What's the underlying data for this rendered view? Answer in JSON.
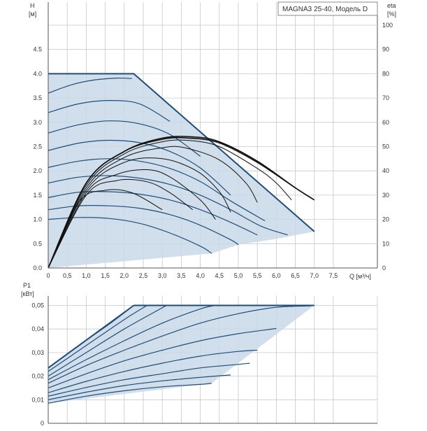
{
  "colors": {
    "envelope_fill": "#c9d8e8",
    "envelope_edge": "#1f4e79",
    "curve": "#1f4e79",
    "eta_curve": "#111111",
    "grid": "#c8c8c8",
    "axis": "#555555"
  },
  "chart_data": [
    {
      "id": "qh",
      "type": "line",
      "title": "MAGNA3 25-40, Модель D",
      "ylabel": "H",
      "ylabel_unit": "[м]",
      "y2label": "eta",
      "y2label_unit": "[%]",
      "xlabel": "Q [м³/ч]",
      "xlim": [
        0,
        8.5
      ],
      "ylim": [
        0,
        5.0
      ],
      "y2lim": [
        0,
        100
      ],
      "grid": true,
      "x_ticks": [
        "0",
        "0,5",
        "1,0",
        "1,5",
        "2,0",
        "2,5",
        "3,0",
        "3,5",
        "4,0",
        "4,5",
        "5,0",
        "5,5",
        "6,0",
        "6,5",
        "7,0",
        "7,5"
      ],
      "y_ticks": [
        "0.0",
        "0.5",
        "1.0",
        "1.5",
        "2.0",
        "2.5",
        "3.0",
        "3.5",
        "4.0",
        "4.5"
      ],
      "y2_ticks": [
        "0",
        "10",
        "20",
        "30",
        "40",
        "50",
        "60",
        "70",
        "80",
        "90",
        "100"
      ],
      "envelope": [
        [
          0,
          4.0
        ],
        [
          2.25,
          4.0
        ],
        [
          7.0,
          0.75
        ],
        [
          6.0,
          0.6
        ],
        [
          5.0,
          0.48
        ],
        [
          4.3,
          0.3
        ],
        [
          0,
          0
        ]
      ],
      "series": [
        {
          "values": [
            [
              0,
              3.6
            ],
            [
              0.6,
              3.77
            ],
            [
              1.2,
              3.87
            ],
            [
              1.8,
              3.91
            ],
            [
              2.2,
              3.9
            ]
          ]
        },
        {
          "values": [
            [
              0,
              3.2
            ],
            [
              0.8,
              3.38
            ],
            [
              1.6,
              3.45
            ],
            [
              2.4,
              3.38
            ],
            [
              3.2,
              3.02
            ]
          ]
        },
        {
          "values": [
            [
              0,
              2.78
            ],
            [
              0.8,
              2.95
            ],
            [
              1.6,
              3.03
            ],
            [
              2.4,
              2.97
            ],
            [
              3.2,
              2.75
            ],
            [
              4.0,
              2.3
            ]
          ]
        },
        {
          "values": [
            [
              0,
              2.42
            ],
            [
              0.8,
              2.57
            ],
            [
              1.6,
              2.63
            ],
            [
              2.4,
              2.58
            ],
            [
              3.2,
              2.4
            ],
            [
              4.0,
              2.06
            ],
            [
              4.8,
              1.5
            ]
          ]
        },
        {
          "values": [
            [
              0,
              2.07
            ],
            [
              0.8,
              2.2
            ],
            [
              1.6,
              2.25
            ],
            [
              2.4,
              2.2
            ],
            [
              3.2,
              2.05
            ],
            [
              4.0,
              1.78
            ],
            [
              4.8,
              1.38
            ],
            [
              5.7,
              0.97
            ]
          ]
        },
        {
          "values": [
            [
              0,
              1.75
            ],
            [
              0.8,
              1.87
            ],
            [
              1.6,
              1.9
            ],
            [
              2.4,
              1.85
            ],
            [
              3.2,
              1.72
            ],
            [
              4.0,
              1.5
            ],
            [
              4.8,
              1.2
            ],
            [
              5.6,
              0.86
            ],
            [
              6.3,
              0.68
            ]
          ]
        },
        {
          "values": [
            [
              0,
              1.45
            ],
            [
              0.8,
              1.56
            ],
            [
              1.6,
              1.57
            ],
            [
              2.4,
              1.52
            ],
            [
              3.2,
              1.4
            ],
            [
              4.0,
              1.2
            ],
            [
              4.8,
              0.94
            ],
            [
              5.5,
              0.68
            ]
          ]
        },
        {
          "values": [
            [
              0,
              1.2
            ],
            [
              0.8,
              1.28
            ],
            [
              1.6,
              1.28
            ],
            [
              2.4,
              1.23
            ],
            [
              3.2,
              1.1
            ],
            [
              4.0,
              0.88
            ],
            [
              4.8,
              0.58
            ],
            [
              5.0,
              0.48
            ]
          ]
        },
        {
          "values": [
            [
              0,
              1.0
            ],
            [
              0.8,
              1.04
            ],
            [
              1.6,
              1.02
            ],
            [
              2.4,
              0.92
            ],
            [
              3.2,
              0.72
            ],
            [
              4.0,
              0.45
            ],
            [
              4.3,
              0.3
            ]
          ]
        }
      ],
      "eta_series": [
        {
          "values": [
            [
              0,
              0
            ],
            [
              1,
              35
            ],
            [
              2,
              48
            ],
            [
              3,
              53.5
            ],
            [
              3.8,
              54
            ],
            [
              4.5,
              52
            ],
            [
              5.5,
              44
            ],
            [
              6.5,
              33
            ],
            [
              7.0,
              28
            ]
          ]
        },
        {
          "values": [
            [
              0,
              0
            ],
            [
              1,
              35
            ],
            [
              2,
              48
            ],
            [
              3,
              53
            ],
            [
              3.7,
              53.5
            ],
            [
              4.5,
              51.5
            ],
            [
              5.5,
              43.5
            ],
            [
              6.5,
              33
            ],
            [
              6.95,
              28.5
            ]
          ]
        },
        {
          "values": [
            [
              0,
              0
            ],
            [
              1,
              34
            ],
            [
              2,
              47
            ],
            [
              3,
              52
            ],
            [
              3.7,
              52.5
            ],
            [
              4.5,
              50
            ],
            [
              5.5,
              41
            ],
            [
              6.0,
              35
            ],
            [
              6.4,
              28
            ]
          ]
        },
        {
          "values": [
            [
              0,
              0
            ],
            [
              1,
              33
            ],
            [
              2,
              45.5
            ],
            [
              3,
              49.5
            ],
            [
              3.6,
              49.5
            ],
            [
              4.5,
              44.5
            ],
            [
              5.2,
              35
            ],
            [
              5.5,
              27
            ]
          ]
        },
        {
          "values": [
            [
              0,
              0
            ],
            [
              1,
              32
            ],
            [
              2,
              43.5
            ],
            [
              3,
              45
            ],
            [
              3.9,
              40
            ],
            [
              4.5,
              31.5
            ],
            [
              4.8,
              23
            ]
          ]
        },
        {
          "values": [
            [
              0,
              0
            ],
            [
              1,
              31
            ],
            [
              1.8,
              38.5
            ],
            [
              2.6,
              40.5
            ],
            [
              3.2,
              37.5
            ],
            [
              4.0,
              28
            ],
            [
              4.4,
              20
            ]
          ]
        },
        {
          "values": [
            [
              0,
              0
            ],
            [
              1,
              30
            ],
            [
              1.8,
              36
            ],
            [
              2.6,
              35.5
            ],
            [
              3.2,
              31
            ],
            [
              3.8,
              24
            ]
          ]
        },
        {
          "values": [
            [
              0,
              0
            ],
            [
              0.8,
              27
            ],
            [
              1.5,
              32
            ],
            [
              2.2,
              31
            ],
            [
              3.0,
              24
            ]
          ]
        }
      ]
    },
    {
      "id": "p1",
      "type": "line",
      "ylabel": "P1",
      "ylabel_unit": "[кВт]",
      "xlim": [
        0,
        8.5
      ],
      "ylim": [
        0,
        0.05
      ],
      "grid": true,
      "y_ticks": [
        "0",
        "0,01",
        "0,02",
        "0,03",
        "0,04",
        "0,05"
      ],
      "envelope": [
        [
          0,
          0.0235
        ],
        [
          2.25,
          0.05
        ],
        [
          7.0,
          0.05
        ],
        [
          4.3,
          0.017
        ],
        [
          0,
          0.0085
        ]
      ],
      "series": [
        {
          "values": [
            [
              0,
              0.0235
            ],
            [
              0.8,
              0.033
            ],
            [
              1.6,
              0.042
            ],
            [
              2.25,
              0.05
            ]
          ]
        },
        {
          "values": [
            [
              0,
              0.022
            ],
            [
              1.0,
              0.033
            ],
            [
              2.0,
              0.044
            ],
            [
              2.6,
              0.05
            ]
          ]
        },
        {
          "values": [
            [
              0,
              0.02
            ],
            [
              1.0,
              0.03
            ],
            [
              2.0,
              0.04
            ],
            [
              3.0,
              0.049
            ],
            [
              3.1,
              0.05
            ]
          ]
        },
        {
          "values": [
            [
              0,
              0.0185
            ],
            [
              1.0,
              0.027
            ],
            [
              2.0,
              0.035
            ],
            [
              3.0,
              0.0425
            ],
            [
              4.0,
              0.0485
            ],
            [
              4.4,
              0.05
            ]
          ]
        },
        {
          "values": [
            [
              0,
              0.017
            ],
            [
              1.0,
              0.0245
            ],
            [
              2.0,
              0.031
            ],
            [
              3.0,
              0.037
            ],
            [
              4.0,
              0.0425
            ],
            [
              5.0,
              0.0465
            ],
            [
              6.0,
              0.0492
            ],
            [
              6.9,
              0.0498
            ]
          ]
        },
        {
          "values": [
            [
              0,
              0.015
            ],
            [
              1.0,
              0.021
            ],
            [
              2.0,
              0.0265
            ],
            [
              3.0,
              0.031
            ],
            [
              4.0,
              0.035
            ],
            [
              5.0,
              0.038
            ],
            [
              6.0,
              0.0402
            ]
          ]
        },
        {
          "values": [
            [
              0,
              0.013
            ],
            [
              1.0,
              0.0178
            ],
            [
              2.0,
              0.022
            ],
            [
              3.0,
              0.0255
            ],
            [
              4.0,
              0.0285
            ],
            [
              5.0,
              0.0305
            ],
            [
              5.5,
              0.031
            ]
          ]
        },
        {
          "values": [
            [
              0,
              0.0115
            ],
            [
              1.0,
              0.0152
            ],
            [
              2.0,
              0.0185
            ],
            [
              3.0,
              0.021
            ],
            [
              4.0,
              0.0235
            ],
            [
              5.0,
              0.025
            ],
            [
              5.3,
              0.0255
            ]
          ]
        },
        {
          "values": [
            [
              0,
              0.01
            ],
            [
              1.0,
              0.0132
            ],
            [
              2.0,
              0.016
            ],
            [
              3.0,
              0.018
            ],
            [
              4.0,
              0.0195
            ],
            [
              4.8,
              0.0205
            ]
          ]
        },
        {
          "values": [
            [
              0,
              0.0085
            ],
            [
              1.0,
              0.0115
            ],
            [
              2.0,
              0.0138
            ],
            [
              3.0,
              0.0155
            ],
            [
              4.0,
              0.0165
            ],
            [
              4.3,
              0.017
            ]
          ]
        }
      ]
    }
  ]
}
